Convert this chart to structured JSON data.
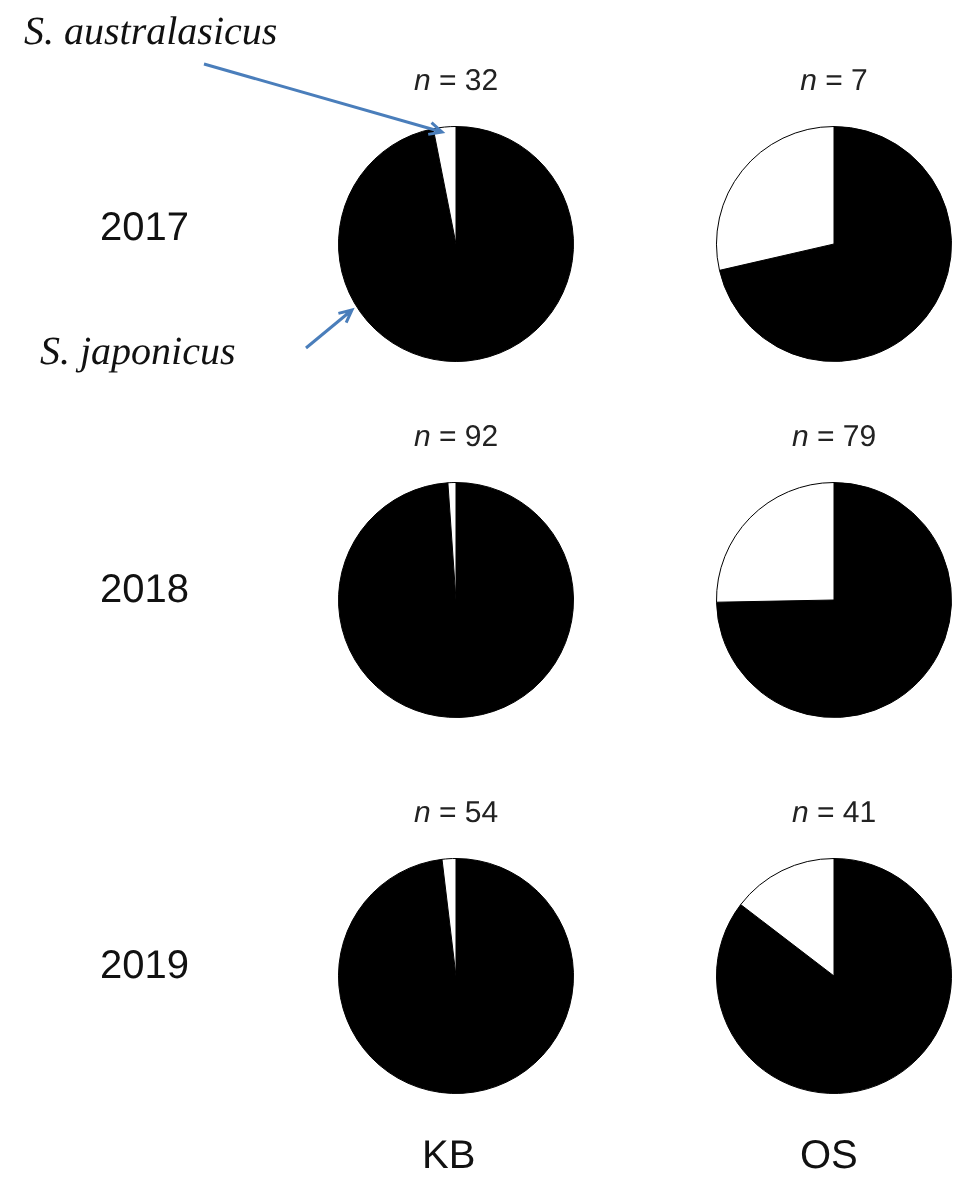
{
  "chart_data": [
    {
      "type": "pie",
      "title": "n = 32",
      "categories": [
        null,
        null
      ],
      "values": [
        96.9,
        3.1
      ],
      "colors": [
        "#000000",
        "#ffffff"
      ],
      "annotations": [
        "2017",
        "S. australasicus",
        "S. japonicus"
      ]
    },
    {
      "type": "pie",
      "title": "n = 7",
      "categories": [
        null,
        null
      ],
      "values": [
        71.4,
        28.6
      ],
      "colors": [
        "#000000",
        "#ffffff"
      ]
    },
    {
      "type": "pie",
      "title": "n = 92",
      "categories": [
        null,
        null
      ],
      "values": [
        98.9,
        1.1
      ],
      "colors": [
        "#000000",
        "#ffffff"
      ],
      "annotations": [
        "2018"
      ]
    },
    {
      "type": "pie",
      "title": "n = 79",
      "categories": [
        null,
        null
      ],
      "values": [
        74.7,
        25.3
      ],
      "colors": [
        "#000000",
        "#ffffff"
      ]
    },
    {
      "type": "pie",
      "title": "n = 54",
      "categories": [
        null,
        null
      ],
      "values": [
        98.1,
        1.9
      ],
      "colors": [
        "#000000",
        "#ffffff"
      ],
      "annotations": [
        "2019",
        "KB"
      ]
    },
    {
      "type": "pie",
      "title": "n = 41",
      "categories": [
        null,
        null
      ],
      "values": [
        85.4,
        14.6
      ],
      "colors": [
        "#000000",
        "#ffffff"
      ],
      "annotations": [
        "OS"
      ]
    }
  ]
}
